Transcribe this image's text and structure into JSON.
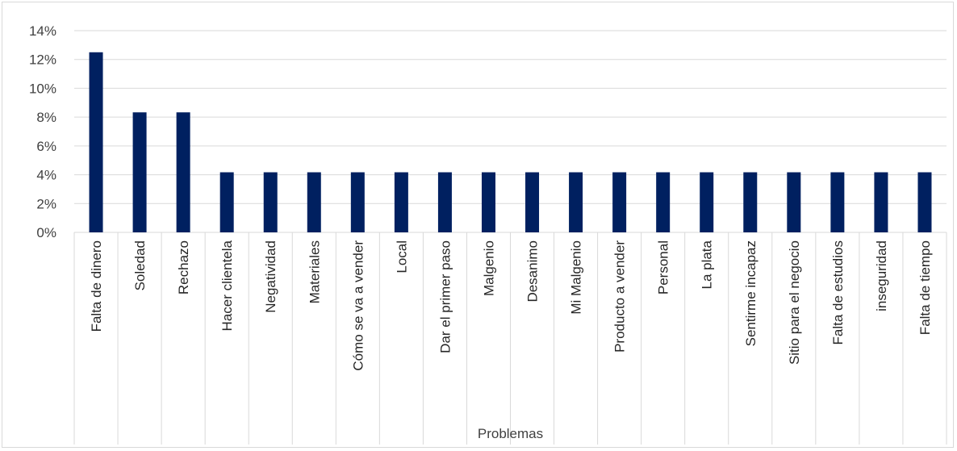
{
  "chart_data": {
    "type": "bar",
    "xlabel": "Problemas",
    "ylabel": "",
    "ylim": [
      0,
      14
    ],
    "y_unit": "%",
    "y_ticks": [
      0,
      2,
      4,
      6,
      8,
      10,
      12,
      14
    ],
    "y_tick_labels": [
      "0%",
      "2%",
      "4%",
      "6%",
      "8%",
      "10%",
      "12%",
      "14%"
    ],
    "grid": true,
    "legend": "none",
    "bar_color": "#002060",
    "categories": [
      "Falta de dinero",
      "Soledad",
      "Rechazo",
      "Hacer clientela",
      "Negatividad",
      "Materiales",
      "Cómo se va a vender",
      "Local",
      "Dar el primer paso",
      "Malgenio",
      "Desanimo",
      "Mi Malgenio",
      "Producto a vender",
      "Personal",
      "La plata",
      "Sentirme incapaz",
      "Sitio para el negocio",
      "Falta de estudios",
      "inseguridad",
      "Falta de tiempo"
    ],
    "values": [
      12.5,
      8.33,
      8.33,
      4.17,
      4.17,
      4.17,
      4.17,
      4.17,
      4.17,
      4.17,
      4.17,
      4.17,
      4.17,
      4.17,
      4.17,
      4.17,
      4.17,
      4.17,
      4.17,
      4.17
    ]
  }
}
